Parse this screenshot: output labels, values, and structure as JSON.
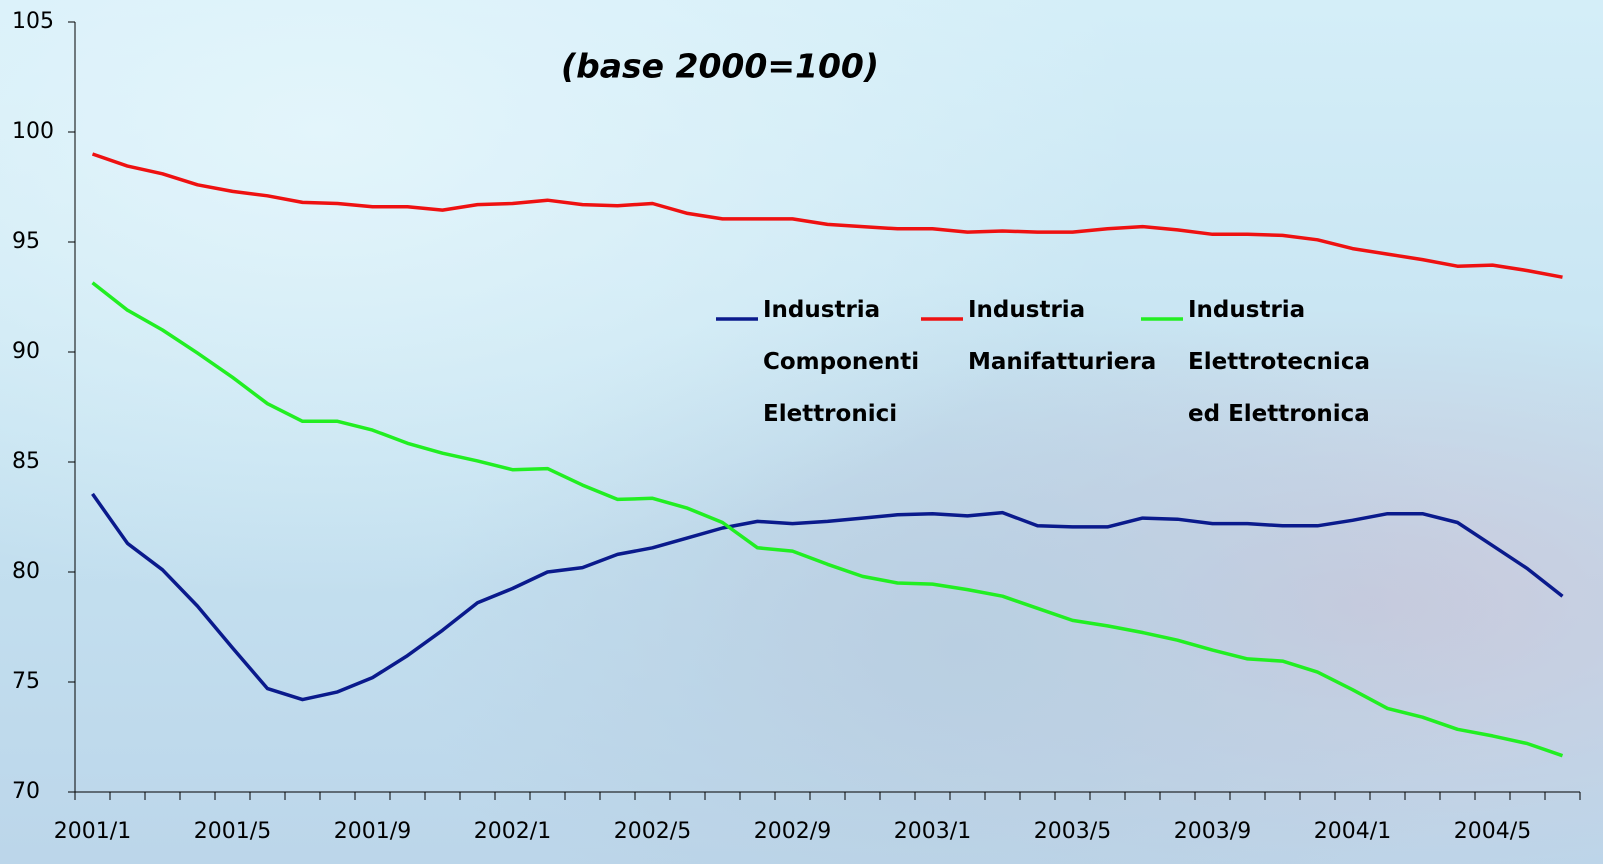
{
  "chart_data": {
    "type": "line",
    "title": "(base 2000=100)",
    "categories": [
      "2001/1",
      null,
      null,
      null,
      "2001/5",
      null,
      null,
      null,
      "2001/9",
      null,
      null,
      null,
      "2002/1",
      null,
      null,
      null,
      "2002/5",
      null,
      null,
      null,
      "2002/9",
      null,
      null,
      null,
      "2003/1",
      null,
      null,
      null,
      "2003/5",
      null,
      null,
      null,
      "2003/9",
      null,
      null,
      null,
      "2004/1",
      null,
      null,
      null,
      "2004/5",
      null,
      null
    ],
    "series": [
      {
        "name": "Industria\nComponenti\nElettronici",
        "color": "#0a1a8c",
        "values": [
          83.55,
          81.3,
          80.1,
          78.45,
          76.55,
          74.7,
          74.2,
          74.55,
          75.2,
          76.2,
          77.35,
          78.6,
          79.25,
          80.0,
          80.2,
          80.8,
          81.1,
          81.55,
          82.0,
          82.3,
          82.2,
          82.3,
          82.45,
          82.6,
          82.65,
          82.55,
          82.7,
          82.1,
          82.05,
          82.05,
          82.45,
          82.4,
          82.2,
          82.2,
          82.1,
          82.1,
          82.35,
          82.65,
          82.65,
          82.25,
          81.2,
          80.15,
          78.9
        ]
      },
      {
        "name": "Industria\nManifatturiera",
        "color": "#ee1111",
        "values": [
          99.0,
          98.45,
          98.1,
          97.6,
          97.3,
          97.1,
          96.8,
          96.75,
          96.6,
          96.6,
          96.45,
          96.7,
          96.75,
          96.9,
          96.7,
          96.65,
          96.75,
          96.3,
          96.05,
          96.05,
          96.05,
          95.8,
          95.7,
          95.6,
          95.6,
          95.45,
          95.5,
          95.45,
          95.45,
          95.6,
          95.7,
          95.55,
          95.35,
          95.35,
          95.3,
          95.1,
          94.7,
          94.45,
          94.2,
          93.9,
          93.95,
          93.7,
          93.4
        ]
      },
      {
        "name": "Industria\nElettrotecnica\ned Elettronica",
        "color": "#22ee22",
        "values": [
          93.15,
          91.9,
          91.0,
          89.95,
          88.85,
          87.65,
          86.85,
          86.85,
          86.45,
          85.85,
          85.4,
          85.05,
          84.65,
          84.7,
          83.95,
          83.3,
          83.35,
          82.9,
          82.25,
          81.1,
          80.95,
          80.35,
          79.8,
          79.5,
          79.45,
          79.2,
          78.9,
          78.35,
          77.8,
          77.55,
          77.25,
          76.9,
          76.45,
          76.05,
          75.95,
          75.45,
          74.65,
          73.8,
          73.4,
          72.85,
          72.55,
          72.2,
          71.65
        ]
      }
    ],
    "ylim": [
      70,
      105
    ],
    "yticks": [
      70,
      75,
      80,
      85,
      90,
      95,
      100,
      105
    ],
    "grid": false
  }
}
